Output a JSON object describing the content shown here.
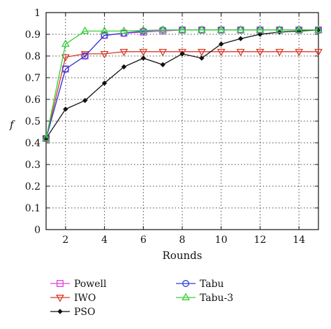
{
  "chart_data": {
    "type": "line",
    "xlabel": "Rounds",
    "ylabel": "f",
    "xlim": [
      1,
      15
    ],
    "ylim": [
      0,
      1
    ],
    "xticks": [
      2,
      4,
      6,
      8,
      10,
      12,
      14
    ],
    "yticks": [
      0,
      0.1,
      0.2,
      0.3,
      0.4,
      0.5,
      0.6,
      0.7,
      0.8,
      0.9,
      1
    ],
    "grid": true,
    "legend_position": "bottom",
    "x": [
      1,
      2,
      3,
      4,
      5,
      6,
      7,
      8,
      9,
      10,
      11,
      12,
      13,
      14,
      15
    ],
    "series": [
      {
        "name": "Powell",
        "color": "#e040e0",
        "marker": "square",
        "values": [
          0.42,
          0.74,
          0.8,
          0.895,
          0.905,
          0.91,
          0.915,
          0.92,
          0.92,
          0.92,
          0.92,
          0.92,
          0.92,
          0.92,
          0.92
        ]
      },
      {
        "name": "IWO",
        "color": "#d93a2b",
        "marker": "triangle-down",
        "values": [
          0.42,
          0.795,
          0.81,
          0.81,
          0.82,
          0.82,
          0.82,
          0.82,
          0.82,
          0.82,
          0.82,
          0.82,
          0.82,
          0.82,
          0.82
        ]
      },
      {
        "name": "PSO",
        "color": "#111111",
        "marker": "diamond",
        "values": [
          0.42,
          0.555,
          0.595,
          0.675,
          0.75,
          0.79,
          0.76,
          0.81,
          0.79,
          0.855,
          0.88,
          0.9,
          0.91,
          0.915,
          0.92
        ]
      },
      {
        "name": "Tabu",
        "color": "#2a3fd6",
        "marker": "circle",
        "values": [
          0.42,
          0.74,
          0.8,
          0.895,
          0.905,
          0.915,
          0.92,
          0.92,
          0.92,
          0.92,
          0.92,
          0.92,
          0.92,
          0.92,
          0.92
        ]
      },
      {
        "name": "Tabu-3",
        "color": "#35d135",
        "marker": "triangle-up",
        "values": [
          0.42,
          0.855,
          0.915,
          0.915,
          0.915,
          0.918,
          0.92,
          0.92,
          0.92,
          0.92,
          0.92,
          0.92,
          0.92,
          0.92,
          0.92
        ]
      }
    ]
  }
}
